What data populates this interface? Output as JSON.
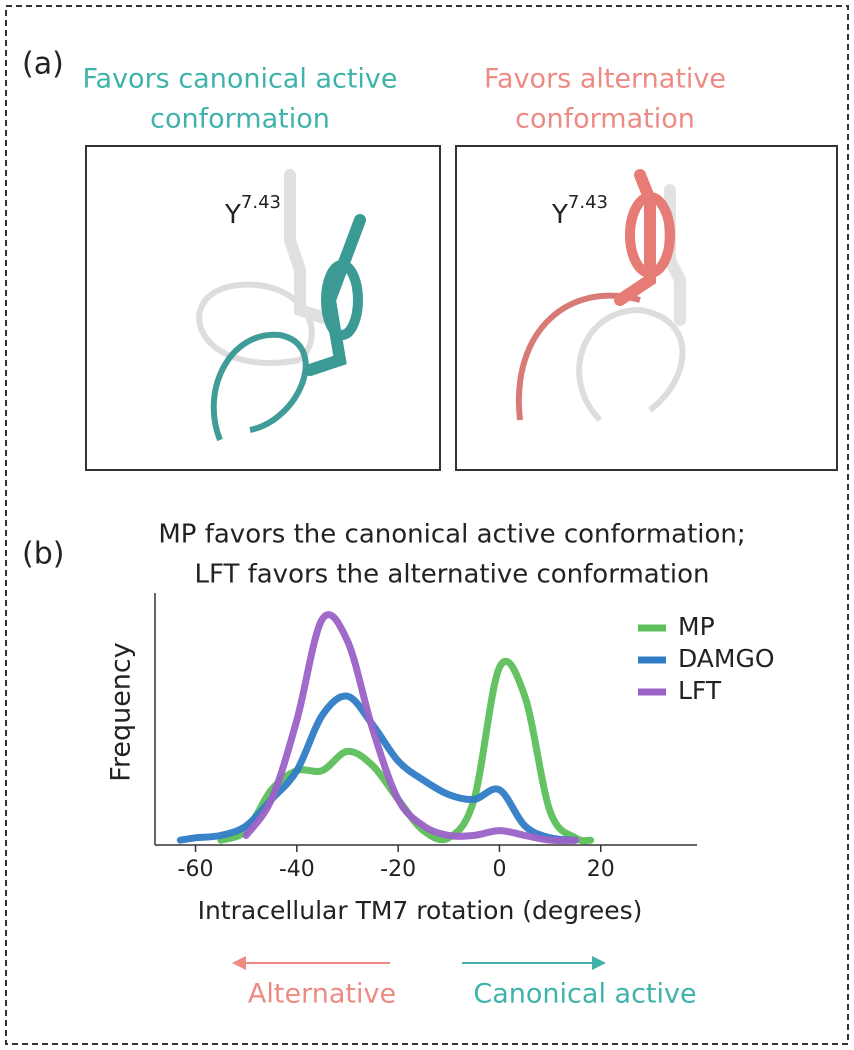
{
  "panel_a": {
    "label": "(a)",
    "left_heading": [
      "Favors canonical active",
      "conformation"
    ],
    "right_heading": [
      "Favors alternative",
      "conformation"
    ],
    "residue": "Y",
    "residue_sup": "7.43"
  },
  "panel_b": {
    "label": "(b)",
    "arrow_left": "Alternative",
    "arrow_right": "Canonical active"
  },
  "chart_data": {
    "type": "line",
    "title": [
      "MP favors the canonical active conformation;",
      "LFT favors the alternative conformation"
    ],
    "x_label": "Intracellular TM7 rotation (degrees)",
    "y_label": "Frequency",
    "x": [
      -63,
      -60,
      -55,
      -50,
      -45,
      -40,
      -35,
      -30,
      -25,
      -20,
      -15,
      -10,
      -5,
      0,
      5,
      10,
      15,
      18
    ],
    "series": [
      {
        "name": "MP",
        "color": "#5cbf5a",
        "values": [
          null,
          null,
          0,
          0.04,
          0.21,
          0.29,
          0.29,
          0.37,
          0.31,
          0.17,
          0.04,
          0.01,
          0.17,
          0.72,
          0.6,
          0.12,
          0.01,
          0
        ]
      },
      {
        "name": "DAMGO",
        "color": "#2f7cc6",
        "values": [
          0,
          0.01,
          0.02,
          0.06,
          0.17,
          0.29,
          0.52,
          0.6,
          0.48,
          0.33,
          0.25,
          0.19,
          0.17,
          0.21,
          0.06,
          0.01,
          0,
          null
        ]
      },
      {
        "name": "LFT",
        "color": "#9a62c6",
        "values": [
          null,
          null,
          null,
          0.02,
          0.17,
          0.5,
          0.92,
          0.83,
          0.46,
          0.17,
          0.06,
          0.02,
          0.02,
          0.04,
          0.02,
          0,
          0,
          null
        ]
      }
    ],
    "xlim": [
      -68,
      39
    ],
    "ylim": [
      -0.02,
      1.03
    ],
    "xticks": [
      -60,
      -40,
      -20,
      0,
      20
    ],
    "legend": "upper right"
  }
}
